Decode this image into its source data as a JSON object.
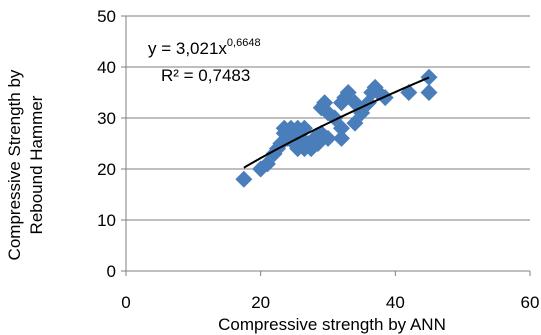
{
  "chart_data": {
    "type": "scatter",
    "xlabel": "Compressive strength by ANN",
    "ylabel_lines": [
      "Compressive Strength by",
      "Rebound Hammer"
    ],
    "xlim": [
      0,
      60
    ],
    "ylim": [
      0,
      50
    ],
    "x_ticks": [
      0,
      20,
      40,
      60
    ],
    "y_ticks": [
      0,
      10,
      20,
      30,
      40,
      50
    ],
    "x_tick_labels": [
      "0",
      "20",
      "40",
      "60"
    ],
    "y_tick_labels": [
      "0",
      "10",
      "20",
      "30",
      "40",
      "50"
    ],
    "grid": "horizontal",
    "marker_color": "#4a7ebb",
    "trend_color": "#000000",
    "equation_prefix": "y = 3,021x",
    "equation_exponent": "0,6648",
    "r_squared": "R² = 0,7483",
    "trendline": {
      "type": "power",
      "a": 3.021,
      "b": 0.6648,
      "x_range": [
        17.5,
        45
      ]
    },
    "series": [
      {
        "points": [
          [
            17.5,
            18
          ],
          [
            20,
            20
          ],
          [
            21,
            21
          ],
          [
            22,
            23
          ],
          [
            22.5,
            24
          ],
          [
            23,
            25
          ],
          [
            23.5,
            27
          ],
          [
            23.5,
            28
          ],
          [
            24,
            26
          ],
          [
            24.5,
            28
          ],
          [
            25,
            25
          ],
          [
            25,
            27
          ],
          [
            25.5,
            24
          ],
          [
            25.5,
            28
          ],
          [
            26,
            26
          ],
          [
            26.5,
            24
          ],
          [
            26.5,
            28
          ],
          [
            27,
            25
          ],
          [
            27.5,
            24
          ],
          [
            28,
            26
          ],
          [
            28.5,
            25
          ],
          [
            29,
            27
          ],
          [
            29,
            32
          ],
          [
            29.5,
            33
          ],
          [
            30,
            26
          ],
          [
            30,
            31
          ],
          [
            31,
            30
          ],
          [
            32,
            26
          ],
          [
            32,
            28
          ],
          [
            32,
            33
          ],
          [
            32.5,
            34
          ],
          [
            33,
            35
          ],
          [
            34,
            29
          ],
          [
            34,
            33
          ],
          [
            35,
            31
          ],
          [
            36,
            33
          ],
          [
            36.5,
            35
          ],
          [
            37,
            36
          ],
          [
            37.5,
            35
          ],
          [
            38.5,
            34
          ],
          [
            42,
            35
          ],
          [
            45,
            38
          ],
          [
            45,
            35
          ]
        ]
      }
    ]
  }
}
